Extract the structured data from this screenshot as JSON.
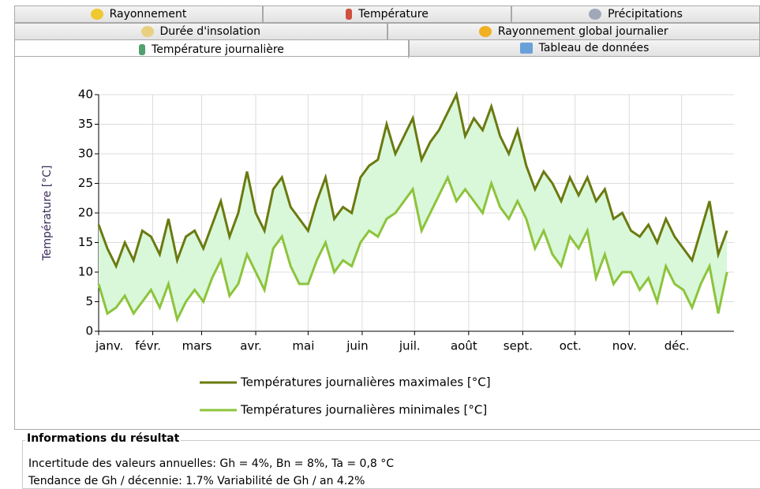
{
  "tabs": {
    "rows": [
      [
        "Rayonnement",
        "Température",
        "Précipitations"
      ],
      [
        "Durée d'insolation",
        "Rayonnement global journalier"
      ],
      [
        "Température journalière",
        "Tableau de données"
      ]
    ]
  },
  "chart_data": {
    "type": "line",
    "ylabel": "Température [°C]",
    "x": [
      1,
      6,
      11,
      16,
      21,
      26,
      31,
      36,
      41,
      46,
      51,
      56,
      61,
      66,
      71,
      76,
      81,
      86,
      91,
      96,
      101,
      106,
      111,
      116,
      121,
      126,
      131,
      136,
      141,
      146,
      151,
      156,
      161,
      166,
      171,
      176,
      181,
      186,
      191,
      196,
      201,
      206,
      211,
      216,
      221,
      226,
      231,
      236,
      241,
      246,
      251,
      256,
      261,
      266,
      271,
      276,
      281,
      286,
      291,
      296,
      301,
      306,
      311,
      316,
      321,
      326,
      331,
      336,
      341,
      346,
      351,
      356,
      361
    ],
    "xlim": [
      1,
      365
    ],
    "xticks": [
      {
        "value": 1,
        "label": "janv."
      },
      {
        "value": 32,
        "label": "févr."
      },
      {
        "value": 60,
        "label": "mars"
      },
      {
        "value": 91,
        "label": "avr."
      },
      {
        "value": 121,
        "label": "mai"
      },
      {
        "value": 152,
        "label": "juin"
      },
      {
        "value": 182,
        "label": "juil."
      },
      {
        "value": 213,
        "label": "août"
      },
      {
        "value": 244,
        "label": "sept."
      },
      {
        "value": 274,
        "label": "oct."
      },
      {
        "value": 305,
        "label": "nov."
      },
      {
        "value": 335,
        "label": "déc."
      }
    ],
    "ylim": [
      0,
      40
    ],
    "yticks": [
      0,
      5,
      10,
      15,
      20,
      25,
      30,
      35,
      40
    ],
    "grid": true,
    "legend": "bottom",
    "fill_color": "#d9f7d9",
    "series": [
      {
        "name": "Températures journalières maximales [°C]",
        "color": "#6b7a10",
        "values": [
          18,
          14,
          11,
          15,
          12,
          17,
          16,
          13,
          19,
          12,
          16,
          17,
          14,
          18,
          22,
          16,
          20,
          27,
          20,
          17,
          24,
          26,
          21,
          19,
          17,
          22,
          26,
          19,
          21,
          20,
          26,
          28,
          29,
          35,
          30,
          33,
          36,
          29,
          32,
          34,
          37,
          40,
          33,
          36,
          34,
          38,
          33,
          30,
          34,
          28,
          24,
          27,
          25,
          22,
          26,
          23,
          26,
          22,
          24,
          19,
          20,
          17,
          16,
          18,
          15,
          19,
          16,
          14,
          12,
          17,
          22,
          13,
          17
        ]
      },
      {
        "name": "Températures journalières minimales [°C]",
        "color": "#8cc43c",
        "values": [
          8,
          3,
          4,
          6,
          3,
          5,
          7,
          4,
          8,
          2,
          5,
          7,
          5,
          9,
          12,
          6,
          8,
          13,
          10,
          7,
          14,
          16,
          11,
          8,
          8,
          12,
          15,
          10,
          12,
          11,
          15,
          17,
          16,
          19,
          20,
          22,
          24,
          17,
          20,
          23,
          26,
          22,
          24,
          22,
          20,
          25,
          21,
          19,
          22,
          19,
          14,
          17,
          13,
          11,
          16,
          14,
          17,
          9,
          13,
          8,
          10,
          10,
          7,
          9,
          5,
          11,
          8,
          7,
          4,
          8,
          11,
          3,
          10
        ]
      }
    ]
  },
  "info": {
    "title": "Informations du résultat",
    "lines": [
      "Incertitude des valeurs annuelles: Gh = 4%, Bn = 8%, Ta = 0,8 °C",
      "Tendance de Gh / décennie: 1.7%   Variabilité de Gh / an 4.2%"
    ]
  }
}
